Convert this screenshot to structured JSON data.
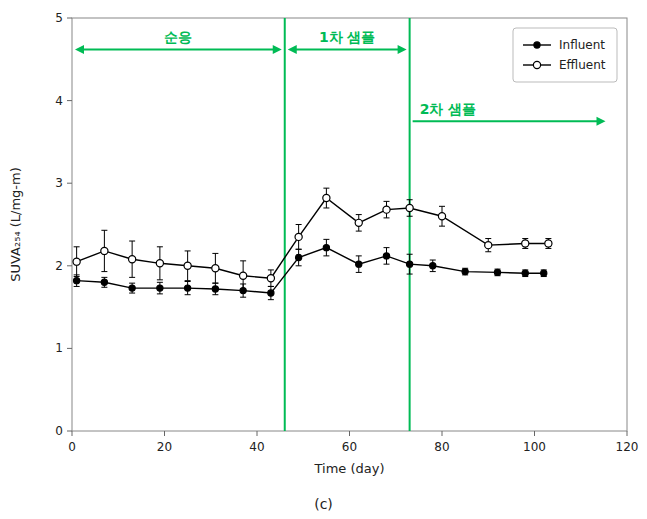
{
  "chart_data": {
    "type": "line",
    "title": "(c)",
    "x_label": "Time (day)",
    "y_label": "SUVA₂₅₄ (L/mg-m)",
    "xlim": [
      0,
      120
    ],
    "ylim": [
      0,
      5
    ],
    "xticks": [
      0,
      20,
      40,
      60,
      80,
      100,
      120
    ],
    "yticks": [
      0,
      1,
      2,
      3,
      4,
      5
    ],
    "grid": false,
    "legend": "upper right",
    "series": [
      {
        "name": "Influent",
        "color": "#000000",
        "marker": "circle",
        "line_style": "solid",
        "x": [
          1,
          7,
          13,
          19,
          25,
          31,
          37,
          43,
          49,
          55,
          62,
          68,
          73,
          78,
          85,
          92,
          98,
          102
        ],
        "values": [
          1.82,
          1.8,
          1.73,
          1.73,
          1.73,
          1.72,
          1.7,
          1.67,
          2.1,
          2.22,
          2.02,
          2.12,
          2.02,
          2.0,
          1.93,
          1.92,
          1.91,
          1.91
        ],
        "errors": [
          0.07,
          0.06,
          0.06,
          0.07,
          0.08,
          0.07,
          0.08,
          0.08,
          0.1,
          0.1,
          0.1,
          0.1,
          0.12,
          0.07,
          0.04,
          0.04,
          0.04,
          0.04
        ]
      },
      {
        "name": "Effluent",
        "color": "#000000",
        "marker": "open-circle",
        "line_style": "solid",
        "x": [
          1,
          7,
          13,
          19,
          25,
          31,
          37,
          43,
          49,
          55,
          62,
          68,
          73,
          80,
          90,
          98,
          103
        ],
        "values": [
          2.05,
          2.18,
          2.08,
          2.03,
          2.0,
          1.97,
          1.88,
          1.85,
          2.35,
          2.82,
          2.52,
          2.68,
          2.7,
          2.6,
          2.25,
          2.27,
          2.27
        ],
        "errors": [
          0.18,
          0.25,
          0.22,
          0.2,
          0.18,
          0.18,
          0.18,
          0.1,
          0.15,
          0.12,
          0.1,
          0.1,
          0.1,
          0.12,
          0.08,
          0.06,
          0.06
        ]
      }
    ],
    "vlines": [
      {
        "x": 46,
        "color": "#00BB55"
      },
      {
        "x": 73,
        "color": "#00BB55"
      }
    ],
    "annotations": [
      {
        "text": "순응",
        "x_start": 0,
        "x_end": 46,
        "y": 4.62,
        "arrow": "both",
        "color": "#00BB55"
      },
      {
        "text": "1차 샘플",
        "x_start": 46,
        "x_end": 73,
        "y": 4.62,
        "arrow": "both",
        "color": "#00BB55"
      },
      {
        "text": "2차 샘플",
        "x_start": 73,
        "x_end": 116,
        "y": 3.75,
        "arrow": "end",
        "color": "#00BB55"
      }
    ]
  }
}
